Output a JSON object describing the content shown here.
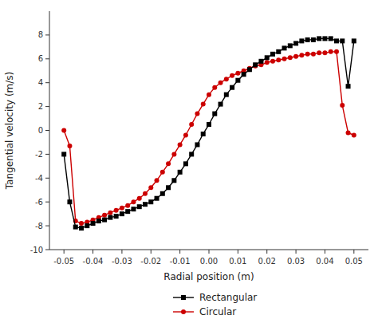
{
  "chart_data": {
    "type": "line",
    "xlabel": "Radial position (m)",
    "ylabel": "Tangential velocity (m/s)",
    "x": [
      -0.05,
      -0.048,
      -0.046,
      -0.044,
      -0.042,
      -0.04,
      -0.038,
      -0.036,
      -0.034,
      -0.032,
      -0.03,
      -0.028,
      -0.026,
      -0.024,
      -0.022,
      -0.02,
      -0.018,
      -0.016,
      -0.014,
      -0.012,
      -0.01,
      -0.008,
      -0.006,
      -0.004,
      -0.002,
      0.0,
      0.002,
      0.004,
      0.006,
      0.008,
      0.01,
      0.012,
      0.014,
      0.016,
      0.018,
      0.02,
      0.022,
      0.024,
      0.026,
      0.028,
      0.03,
      0.032,
      0.034,
      0.036,
      0.038,
      0.04,
      0.042,
      0.044,
      0.046,
      0.048,
      0.05
    ],
    "series": [
      {
        "name": "Rectangular",
        "color": "#000000",
        "marker": "square",
        "values": [
          -2.0,
          -6.0,
          -8.1,
          -8.2,
          -8.0,
          -7.8,
          -7.6,
          -7.5,
          -7.3,
          -7.2,
          -7.0,
          -6.8,
          -6.6,
          -6.4,
          -6.2,
          -6.0,
          -5.7,
          -5.3,
          -4.8,
          -4.2,
          -3.5,
          -2.8,
          -2.0,
          -1.2,
          -0.3,
          0.5,
          1.4,
          2.2,
          3.0,
          3.6,
          4.2,
          4.7,
          5.1,
          5.5,
          5.8,
          6.1,
          6.4,
          6.6,
          6.9,
          7.1,
          7.3,
          7.5,
          7.6,
          7.6,
          7.7,
          7.7,
          7.7,
          7.5,
          7.5,
          3.7,
          7.5
        ]
      },
      {
        "name": "Circular",
        "color": "#cc0000",
        "marker": "circle",
        "values": [
          0.0,
          -1.3,
          -7.6,
          -7.8,
          -7.7,
          -7.5,
          -7.3,
          -7.1,
          -6.9,
          -6.7,
          -6.5,
          -6.3,
          -6.0,
          -5.7,
          -5.3,
          -4.8,
          -4.2,
          -3.5,
          -2.8,
          -2.0,
          -1.2,
          -0.4,
          0.5,
          1.4,
          2.2,
          3.0,
          3.6,
          4.0,
          4.3,
          4.6,
          4.8,
          5.0,
          5.2,
          5.4,
          5.5,
          5.7,
          5.8,
          5.9,
          6.0,
          6.1,
          6.2,
          6.3,
          6.4,
          6.4,
          6.5,
          6.5,
          6.6,
          6.6,
          2.1,
          -0.2,
          -0.4
        ]
      }
    ],
    "xlim": [
      -0.055,
      0.055
    ],
    "ylim": [
      -10,
      10
    ],
    "xticks": [
      -0.05,
      -0.04,
      -0.03,
      -0.02,
      -0.01,
      {
        "value": 0,
        "label": "0.00"
      },
      0.01,
      0.02,
      0.03,
      0.04,
      0.05
    ],
    "yticks": [
      -10,
      -8,
      -6,
      -4,
      -2,
      0,
      2,
      4,
      6,
      8
    ],
    "grid": false,
    "legend": "bottom"
  }
}
